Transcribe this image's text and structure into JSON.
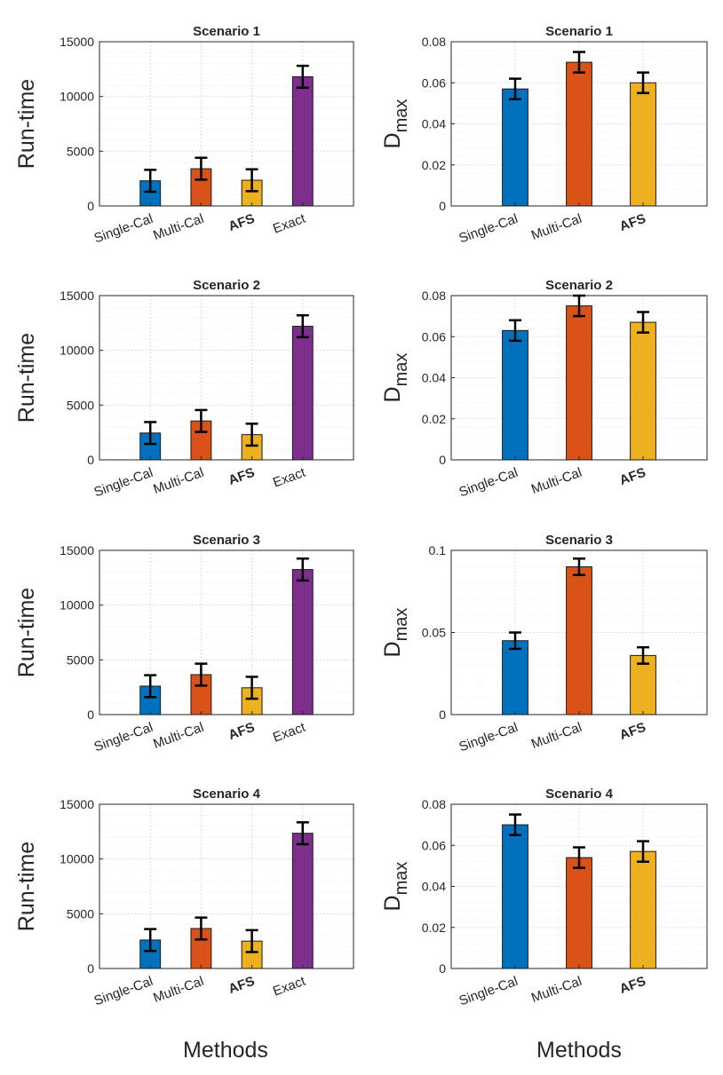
{
  "chart_data": [
    {
      "type": "bar",
      "title": "Scenario 1",
      "ylabel": "Run-time",
      "categories": [
        "Single-Cal",
        "Multi-Cal",
        "AFS",
        "Exact"
      ],
      "values": [
        2300,
        3400,
        2350,
        11800
      ],
      "errors": [
        1000,
        1000,
        1000,
        1000
      ],
      "ylim": [
        0,
        15000
      ],
      "yticks": [
        0,
        5000,
        10000,
        15000
      ],
      "ytick_labels": [
        "0",
        "5000",
        "10000",
        "15000"
      ],
      "grid": true
    },
    {
      "type": "bar",
      "title": "Scenario 1",
      "ylabel": "D",
      "ylabel_sub": "max",
      "categories": [
        "Single-Cal",
        "Multi-Cal",
        "AFS"
      ],
      "values": [
        0.057,
        0.07,
        0.06
      ],
      "errors": [
        0.005,
        0.005,
        0.005
      ],
      "ylim": [
        0,
        0.08
      ],
      "yticks": [
        0,
        0.02,
        0.04,
        0.06,
        0.08
      ],
      "ytick_labels": [
        "0",
        "0.02",
        "0.04",
        "0.06",
        "0.08"
      ],
      "grid": true
    },
    {
      "type": "bar",
      "title": "Scenario 2",
      "ylabel": "Run-time",
      "categories": [
        "Single-Cal",
        "Multi-Cal",
        "AFS",
        "Exact"
      ],
      "values": [
        2450,
        3550,
        2300,
        12200
      ],
      "errors": [
        1000,
        1000,
        1000,
        1000
      ],
      "ylim": [
        0,
        15000
      ],
      "yticks": [
        0,
        5000,
        10000,
        15000
      ],
      "ytick_labels": [
        "0",
        "5000",
        "10000",
        "15000"
      ],
      "grid": true
    },
    {
      "type": "bar",
      "title": "Scenario 2",
      "ylabel": "D",
      "ylabel_sub": "max",
      "categories": [
        "Single-Cal",
        "Multi-Cal",
        "AFS"
      ],
      "values": [
        0.063,
        0.075,
        0.067
      ],
      "errors": [
        0.005,
        0.005,
        0.005
      ],
      "ylim": [
        0,
        0.08
      ],
      "yticks": [
        0,
        0.02,
        0.04,
        0.06,
        0.08
      ],
      "ytick_labels": [
        "0",
        "0.02",
        "0.04",
        "0.06",
        "0.08"
      ],
      "grid": true
    },
    {
      "type": "bar",
      "title": "Scenario 3",
      "ylabel": "Run-time",
      "categories": [
        "Single-Cal",
        "Multi-Cal",
        "AFS",
        "Exact"
      ],
      "values": [
        2600,
        3650,
        2450,
        13250
      ],
      "errors": [
        1000,
        1000,
        1000,
        1000
      ],
      "ylim": [
        0,
        15000
      ],
      "yticks": [
        0,
        5000,
        10000,
        15000
      ],
      "ytick_labels": [
        "0",
        "5000",
        "10000",
        "15000"
      ],
      "grid": true
    },
    {
      "type": "bar",
      "title": "Scenario 3",
      "ylabel": "D",
      "ylabel_sub": "max",
      "categories": [
        "Single-Cal",
        "Multi-Cal",
        "AFS"
      ],
      "values": [
        0.045,
        0.09,
        0.036
      ],
      "errors": [
        0.005,
        0.005,
        0.005
      ],
      "ylim": [
        0,
        0.1
      ],
      "yticks": [
        0,
        0.05,
        0.1
      ],
      "ytick_labels": [
        "0",
        "0.05",
        "0.1"
      ],
      "grid": true
    },
    {
      "type": "bar",
      "title": "Scenario 4",
      "ylabel": "Run-time",
      "categories": [
        "Single-Cal",
        "Multi-Cal",
        "AFS",
        "Exact"
      ],
      "values": [
        2600,
        3650,
        2500,
        12350
      ],
      "errors": [
        1000,
        1000,
        1000,
        1000
      ],
      "ylim": [
        0,
        15000
      ],
      "yticks": [
        0,
        5000,
        10000,
        15000
      ],
      "ytick_labels": [
        "0",
        "5000",
        "10000",
        "15000"
      ],
      "grid": true
    },
    {
      "type": "bar",
      "title": "Scenario 4",
      "ylabel": "D",
      "ylabel_sub": "max",
      "categories": [
        "Single-Cal",
        "Multi-Cal",
        "AFS"
      ],
      "values": [
        0.07,
        0.054,
        0.057
      ],
      "errors": [
        0.005,
        0.005,
        0.005
      ],
      "ylim": [
        0,
        0.08
      ],
      "yticks": [
        0,
        0.02,
        0.04,
        0.06,
        0.08
      ],
      "ytick_labels": [
        "0",
        "0.02",
        "0.04",
        "0.06",
        "0.08"
      ],
      "grid": true
    }
  ],
  "xlabel_left": "Methods",
  "xlabel_right": "Methods",
  "bold_category": "AFS",
  "colors": {
    "Single-Cal": "#0072BD",
    "Multi-Cal": "#D95319",
    "AFS": "#EDB120",
    "Exact": "#7E2F8E"
  }
}
